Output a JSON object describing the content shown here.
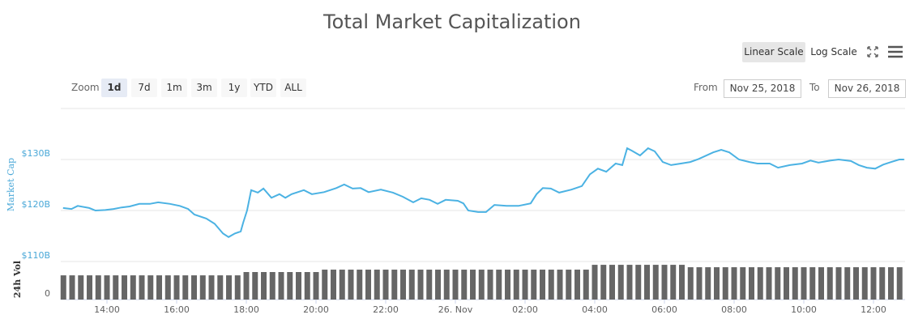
{
  "controls": {
    "scale_buttons": [
      "Linear Scale",
      "Log Scale"
    ],
    "selected_scale": 0,
    "zoom_label": "Zoom",
    "zoom_buttons": [
      "1d",
      "7d",
      "1m",
      "3m",
      "1y",
      "YTD",
      "ALL"
    ],
    "selected_zoom": 0,
    "from_label": "From",
    "from": "Nov 25, 2018",
    "to_label": "To",
    "to": "Nov 26, 2018"
  },
  "chart_data": [
    {
      "type": "line",
      "title": "Total Market Capitalization",
      "y_label": "Market Cap",
      "color": "#4bb2e3",
      "xlim": [
        12.674,
        36.907
      ],
      "ylim": [
        110,
        140
      ],
      "yticks": [
        {
          "value": 110,
          "label": "$110B"
        },
        {
          "value": 120,
          "label": "$120B"
        },
        {
          "value": 130,
          "label": "$130B"
        }
      ],
      "grid": true,
      "x": [
        12.74,
        12.98,
        13.16,
        13.49,
        13.67,
        13.95,
        14.19,
        14.42,
        14.65,
        14.93,
        15.23,
        15.47,
        15.81,
        16.09,
        16.33,
        16.51,
        16.86,
        17.09,
        17.33,
        17.49,
        17.67,
        17.84,
        17.91,
        18.02,
        18.14,
        18.33,
        18.49,
        18.72,
        18.95,
        19.12,
        19.3,
        19.65,
        19.88,
        20.23,
        20.58,
        20.81,
        21.05,
        21.28,
        21.51,
        21.86,
        22.21,
        22.49,
        22.79,
        23.02,
        23.26,
        23.49,
        23.72,
        24.07,
        24.23,
        24.37,
        24.65,
        24.88,
        25.12,
        25.47,
        25.81,
        26.16,
        26.33,
        26.51,
        26.74,
        26.98,
        27.33,
        27.63,
        27.86,
        28.09,
        28.33,
        28.6,
        28.79,
        28.93,
        29.07,
        29.3,
        29.53,
        29.72,
        29.95,
        30.19,
        30.47,
        30.74,
        30.98,
        31.4,
        31.63,
        31.86,
        32.14,
        32.44,
        32.67,
        33.02,
        33.26,
        33.6,
        33.95,
        34.19,
        34.42,
        34.77,
        35.0,
        35.35,
        35.58,
        35.81,
        36.05,
        36.28,
        36.51,
        36.74,
        36.88
      ],
      "values": [
        120.5,
        120.3,
        120.9,
        120.5,
        120.0,
        120.1,
        120.3,
        120.6,
        120.8,
        121.3,
        121.3,
        121.6,
        121.3,
        120.9,
        120.3,
        119.2,
        118.4,
        117.4,
        115.5,
        114.8,
        115.5,
        115.9,
        117.6,
        120.0,
        124.0,
        123.5,
        124.3,
        122.5,
        123.2,
        122.5,
        123.2,
        124.0,
        123.2,
        123.6,
        124.4,
        125.1,
        124.3,
        124.4,
        123.6,
        124.1,
        123.5,
        122.7,
        121.6,
        122.4,
        122.1,
        121.3,
        122.1,
        121.9,
        121.4,
        120.0,
        119.7,
        119.7,
        121.1,
        120.9,
        120.9,
        121.4,
        123.2,
        124.4,
        124.3,
        123.5,
        124.1,
        124.8,
        127.1,
        128.2,
        127.6,
        129.2,
        128.9,
        132.2,
        131.7,
        130.8,
        132.2,
        131.6,
        129.5,
        128.9,
        129.2,
        129.5,
        130.1,
        131.4,
        131.9,
        131.4,
        130.0,
        129.5,
        129.2,
        129.2,
        128.4,
        128.9,
        129.2,
        129.8,
        129.4,
        129.8,
        130.0,
        129.7,
        128.9,
        128.4,
        128.2,
        129.0,
        129.5,
        130.0,
        130.0
      ]
    },
    {
      "type": "bar",
      "y_label": "24h Vol",
      "color": "#666666",
      "xlim": [
        12.674,
        36.907
      ],
      "ylim": [
        0,
        30
      ],
      "yticks": [
        0
      ],
      "xticks": [
        {
          "value": 14,
          "label": "14:00"
        },
        {
          "value": 16,
          "label": "16:00"
        },
        {
          "value": 18,
          "label": "18:00"
        },
        {
          "value": 20,
          "label": "20:00"
        },
        {
          "value": 22,
          "label": "22:00"
        },
        {
          "value": 24,
          "label": "26. Nov"
        },
        {
          "value": 26,
          "label": "02:00"
        },
        {
          "value": 28,
          "label": "04:00"
        },
        {
          "value": 30,
          "label": "06:00"
        },
        {
          "value": 32,
          "label": "08:00"
        },
        {
          "value": 34,
          "label": "10:00"
        },
        {
          "value": 36,
          "label": "12:00"
        }
      ],
      "x": [
        12.75,
        13,
        13.25,
        13.5,
        13.75,
        14,
        14.25,
        14.5,
        14.75,
        15,
        15.25,
        15.5,
        15.75,
        16,
        16.25,
        16.5,
        16.75,
        17,
        17.25,
        17.5,
        17.75,
        18,
        18.25,
        18.5,
        18.75,
        19,
        19.25,
        19.5,
        19.75,
        20,
        20.25,
        20.5,
        20.75,
        21,
        21.25,
        21.5,
        21.75,
        22,
        22.25,
        22.5,
        22.75,
        23,
        23.25,
        23.5,
        23.75,
        24,
        24.25,
        24.5,
        24.75,
        25,
        25.25,
        25.5,
        25.75,
        26,
        26.25,
        26.5,
        26.75,
        27,
        27.25,
        27.5,
        27.75,
        28,
        28.25,
        28.5,
        28.75,
        29,
        29.25,
        29.5,
        29.75,
        30,
        30.25,
        30.5,
        30.75,
        31,
        31.25,
        31.5,
        31.75,
        32,
        32.25,
        32.5,
        32.75,
        33,
        33.25,
        33.5,
        33.75,
        34,
        34.25,
        34.5,
        34.75,
        35,
        35.25,
        35.5,
        35.75,
        36,
        36.25,
        36.5,
        36.75
      ],
      "values": [
        19.1,
        19.1,
        19.1,
        19.1,
        19.1,
        19.1,
        19.1,
        19.1,
        19.1,
        19.1,
        19.1,
        19.1,
        19.1,
        19.1,
        19.1,
        19.1,
        19.1,
        19.1,
        19.1,
        19.1,
        19.1,
        21.7,
        21.7,
        21.7,
        21.7,
        21.7,
        21.7,
        21.7,
        21.7,
        21.7,
        23.6,
        23.6,
        23.6,
        23.6,
        23.6,
        23.6,
        23.6,
        23.6,
        23.6,
        23.6,
        23.6,
        23.6,
        23.6,
        23.6,
        23.6,
        23.6,
        23.6,
        23.6,
        23.6,
        23.6,
        23.6,
        23.6,
        23.6,
        23.6,
        23.6,
        23.6,
        23.6,
        23.6,
        23.6,
        23.6,
        23.6,
        27.4,
        27.4,
        27.4,
        27.4,
        27.4,
        27.4,
        27.4,
        27.4,
        27.4,
        27.4,
        27.4,
        25.5,
        25.5,
        25.5,
        25.5,
        25.5,
        25.5,
        25.5,
        25.5,
        25.5,
        25.5,
        25.5,
        25.5,
        25.5,
        25.5,
        25.5,
        25.5,
        25.5,
        25.5,
        25.5,
        25.5,
        25.5,
        25.5,
        25.5,
        25.5,
        25.5
      ]
    }
  ]
}
